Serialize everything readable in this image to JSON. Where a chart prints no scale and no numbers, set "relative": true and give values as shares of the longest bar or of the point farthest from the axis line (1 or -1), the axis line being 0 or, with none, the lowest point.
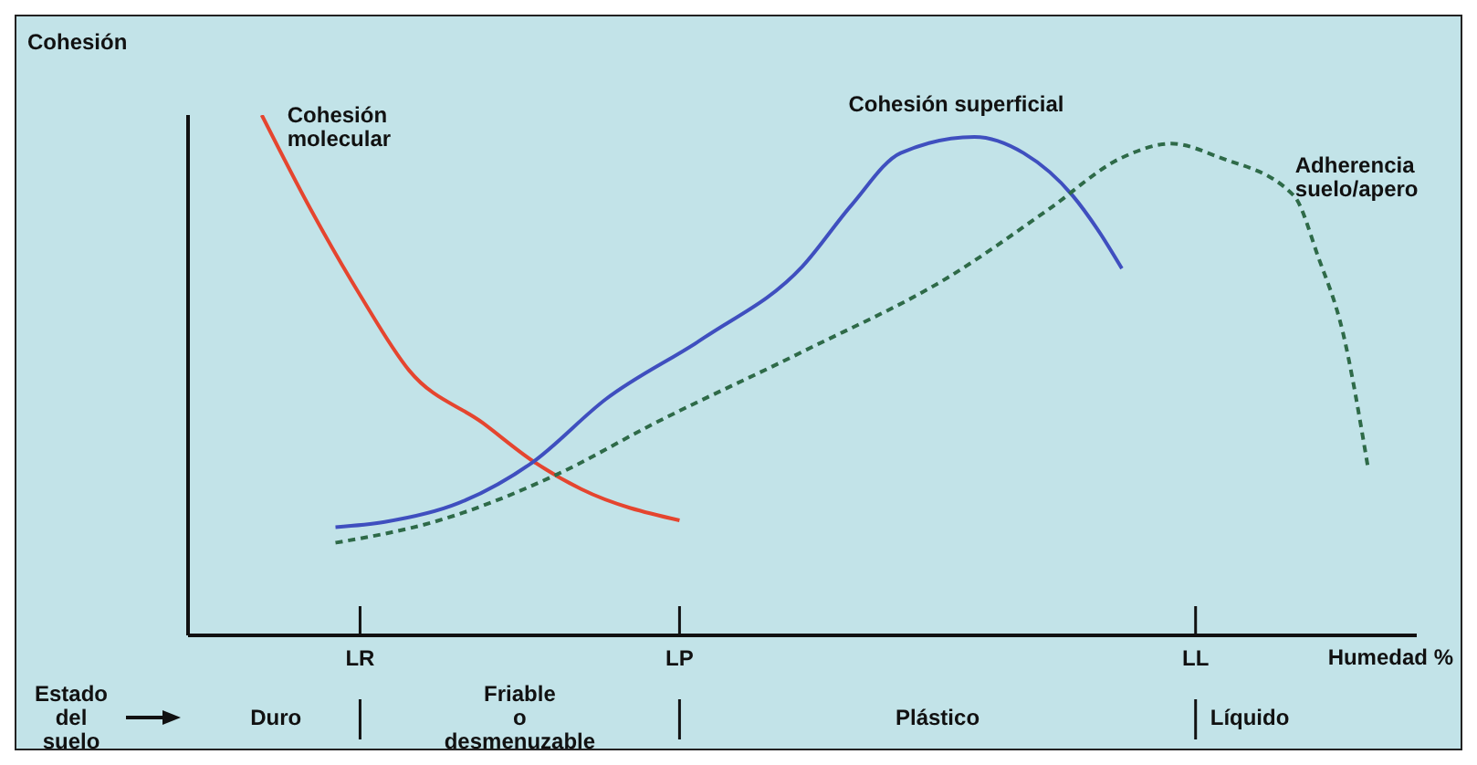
{
  "chart_data": {
    "type": "line",
    "relative": true,
    "ylabel": "Cohesión",
    "xlabel": "Humedad %",
    "categories": [
      null,
      null,
      null,
      null,
      null,
      null,
      null,
      "LR",
      null,
      null,
      null,
      null,
      null,
      null,
      null,
      null,
      null,
      null,
      null,
      null,
      "LP",
      null,
      null,
      null,
      null,
      null,
      null,
      null,
      null,
      null,
      null,
      null,
      null,
      null,
      null,
      null,
      null,
      null,
      null,
      null,
      null,
      "LL",
      null,
      null,
      null,
      null,
      null,
      null,
      null,
      null,
      null
    ],
    "annotations": [
      "Estado del suelo",
      "Duro",
      "Friable o desmenuzable",
      "Plástico",
      "Líquido"
    ],
    "series": [
      {
        "name": "Cohesión molecular",
        "color": "#e5452f",
        "line_style": "solid",
        "values": [
          null,
          null,
          null,
          1.0,
          null,
          0.818,
          null,
          0.654,
          null,
          0.509,
          null,
          null,
          0.408,
          null,
          0.336,
          null,
          0.281,
          null,
          null,
          null,
          0.221,
          null,
          null,
          null,
          null,
          null,
          null,
          null,
          null,
          null,
          null,
          null,
          null,
          null,
          null,
          null,
          null,
          null,
          null,
          null,
          null,
          null,
          null,
          null,
          null,
          null,
          null,
          null,
          null,
          null,
          null
        ]
      },
      {
        "name": "Cohesión superficial",
        "color": "#3f4fbf",
        "line_style": "solid",
        "values": [
          null,
          null,
          null,
          null,
          null,
          null,
          0.208,
          null,
          0.218,
          null,
          null,
          0.254,
          null,
          null,
          0.332,
          null,
          null,
          0.454,
          null,
          null,
          null,
          0.572,
          null,
          null,
          null,
          0.709,
          null,
          0.827,
          null,
          0.927,
          null,
          null,
          0.958,
          null,
          0.927,
          null,
          0.845,
          0.781,
          0.705,
          null,
          null,
          null,
          null,
          null,
          null,
          null,
          null,
          null,
          null,
          null,
          null
        ]
      },
      {
        "name": "Adherencia suelo/apero",
        "color": "#2e6a48",
        "line_style": "dashed",
        "values": [
          null,
          null,
          null,
          null,
          null,
          null,
          0.178,
          null,
          null,
          null,
          0.218,
          null,
          null,
          null,
          null,
          0.309,
          null,
          null,
          null,
          0.408,
          null,
          null,
          null,
          null,
          null,
          0.545,
          null,
          null,
          null,
          null,
          null,
          0.69,
          null,
          null,
          null,
          0.818,
          null,
          null,
          0.918,
          null,
          0.945,
          null,
          0.918,
          null,
          null,
          0.845,
          0.726,
          0.581,
          0.327,
          null,
          null
        ]
      }
    ],
    "grid": false,
    "legend": false
  }
}
